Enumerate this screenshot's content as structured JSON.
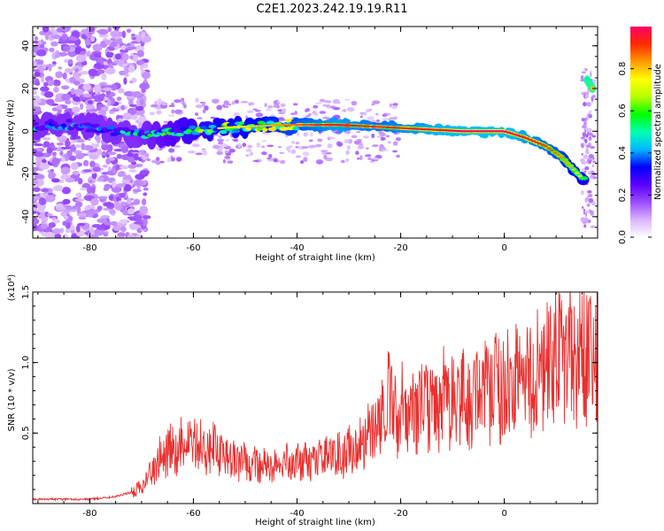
{
  "title": "C2E1.2023.242.19.19.R11",
  "colors": {
    "snr_line": "#e8302e",
    "axis": "#000000"
  },
  "chart_data": [
    {
      "type": "heatmap",
      "xlabel": "Height of straight line (km)",
      "ylabel": "Frequency (Hz)",
      "xlim": [
        -91,
        18
      ],
      "ylim": [
        -50,
        49
      ],
      "x_ticks": [
        -80,
        -60,
        -40,
        -20,
        0
      ],
      "y_ticks": [
        -40,
        -20,
        0,
        20,
        40
      ],
      "colorbar": {
        "label": "Normalized spectral amplitude",
        "range": [
          0,
          1
        ],
        "ticks": [
          "0.0",
          "0.2",
          "0.4",
          "0.6",
          "0.8"
        ],
        "colormap": [
          "#ffffff",
          "#d9b3ff",
          "#9a4cff",
          "#5a00ff",
          "#0000ff",
          "#00b8ff",
          "#00ffb0",
          "#00ff00",
          "#b8ff00",
          "#ffff00",
          "#ff9a00",
          "#ff2a00",
          "#ff0066"
        ]
      },
      "ridge_trace": {
        "x_km": [
          -82,
          -70,
          -62,
          -52,
          -42,
          -32,
          -24,
          -16,
          -8,
          0,
          4,
          8,
          11,
          13,
          15
        ],
        "freq_hz": [
          3,
          -2,
          0,
          2,
          3,
          3,
          2,
          1,
          0,
          0,
          -3,
          -7,
          -12,
          -17,
          -22
        ],
        "amplitude": [
          0.35,
          0.45,
          0.6,
          0.7,
          0.8,
          0.9,
          0.85,
          0.9,
          0.95,
          0.95,
          0.9,
          0.85,
          0.8,
          0.75,
          0.7
        ]
      },
      "secondary_trace": {
        "x_km": [
          16,
          17
        ],
        "freq_hz": [
          24,
          20
        ],
        "amplitude": [
          0.85,
          0.8
        ]
      }
    },
    {
      "type": "line",
      "xlabel": "Height of straight line (km)",
      "ylabel": "SNR (10 * v/v)",
      "y_multiplier": "(x10⁴)",
      "xlim": [
        -91,
        18
      ],
      "ylim": [
        0,
        15000
      ],
      "x_ticks": [
        -80,
        -60,
        -40,
        -20,
        0
      ],
      "y_ticks": [
        0.5,
        1.0,
        1.5
      ],
      "envelope": {
        "x_km": [
          -91,
          -80,
          -75,
          -72,
          -70,
          -68,
          -67,
          -64,
          -60,
          -56,
          -52,
          -48,
          -44,
          -40,
          -36,
          -32,
          -29,
          -28,
          -26,
          -24,
          -22.5,
          -22,
          -20,
          -16,
          -12,
          -8,
          -4,
          0,
          4,
          8,
          10,
          10.5,
          12,
          15,
          18
        ],
        "snr": [
          300,
          300,
          500,
          800,
          1200,
          2200,
          3000,
          4000,
          4400,
          3800,
          3000,
          2800,
          2700,
          2900,
          3100,
          3400,
          3800,
          4600,
          5200,
          5500,
          8500,
          6400,
          6600,
          7000,
          7300,
          7500,
          7900,
          8300,
          8700,
          9500,
          11500,
          10000,
          10200,
          11000,
          11800
        ]
      }
    }
  ]
}
